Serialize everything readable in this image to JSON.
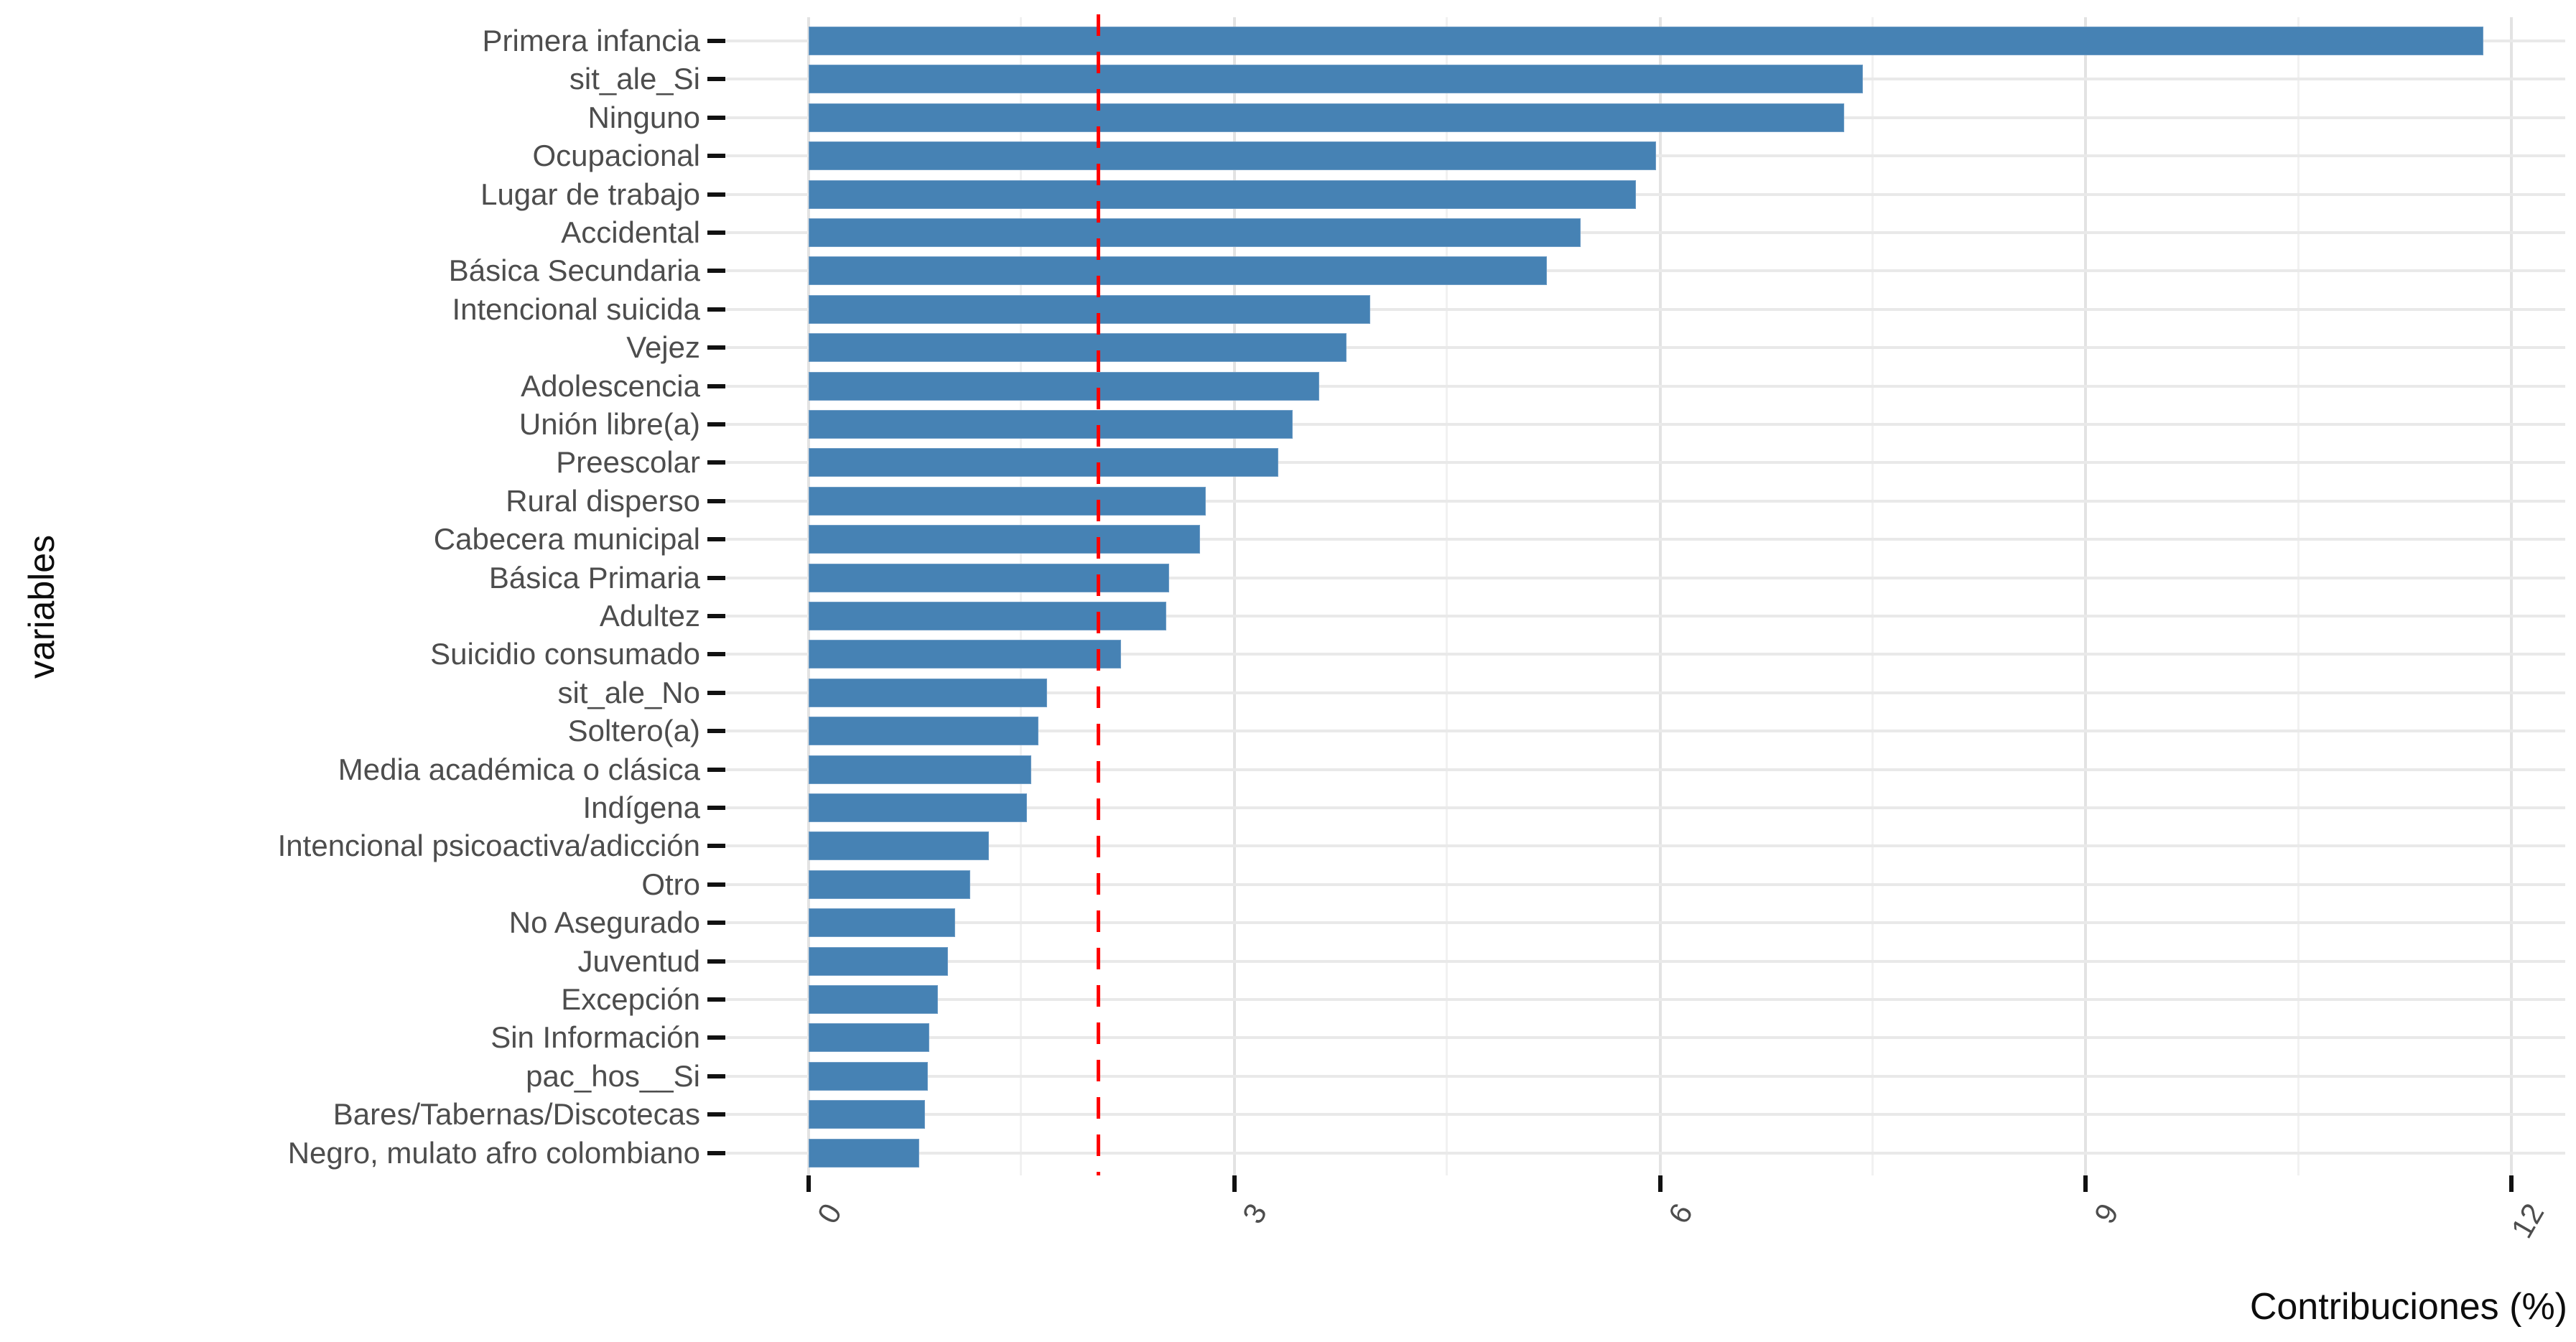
{
  "chart_data": {
    "type": "bar",
    "orientation": "horizontal",
    "title": "",
    "xlabel": "Contribuciones (%)",
    "ylabel": "variables",
    "x_ticks": [
      0,
      3,
      6,
      9,
      12
    ],
    "x_tick_labels": [
      "0",
      "3",
      "6",
      "9",
      "12"
    ],
    "xlim": [
      -0.6,
      12.4
    ],
    "grid": true,
    "legend": "none",
    "bar_color": "#4682B4",
    "reference_line": {
      "value": 2.04,
      "style": "dashed",
      "color": "#FF0000",
      "meaning": "expected-average-contribution-line"
    },
    "categories": [
      "Primera infancia",
      "sit_ale_Si",
      "Ninguno",
      "Ocupacional",
      "Lugar de trabajo",
      "Accidental",
      "Básica Secundaria",
      "Intencional suicida",
      "Vejez",
      "Adolescencia",
      "Unión libre(a)",
      "Preescolar",
      "Rural disperso",
      "Cabecera municipal",
      "Básica Primaria",
      "Adultez",
      "Suicidio consumado",
      "sit_ale_No",
      "Soltero(a)",
      "Media académica o clásica",
      "Indígena",
      "Intencional psicoactiva/adicción",
      "Otro",
      "No Asegurado",
      "Juventud",
      "Excepción",
      "Sin Información",
      "pac_hos__Si",
      "Bares/Tabernas/Discotecas",
      "Negro, mulato afro colombiano"
    ],
    "values": [
      11.8,
      7.43,
      7.3,
      5.97,
      5.83,
      5.44,
      5.2,
      3.96,
      3.79,
      3.6,
      3.41,
      3.31,
      2.8,
      2.76,
      2.54,
      2.52,
      2.2,
      1.68,
      1.62,
      1.57,
      1.54,
      1.27,
      1.14,
      1.03,
      0.98,
      0.91,
      0.85,
      0.84,
      0.82,
      0.78
    ]
  },
  "colors": {
    "bar_fill": "#4682B4",
    "reference_line": "#FF0000",
    "grid_major": "#e3e3e3",
    "grid_minor": "#f1f1f1",
    "axis_text": "#4d4d4d",
    "axis_title": "#0d0d0d",
    "background": "#ffffff"
  }
}
